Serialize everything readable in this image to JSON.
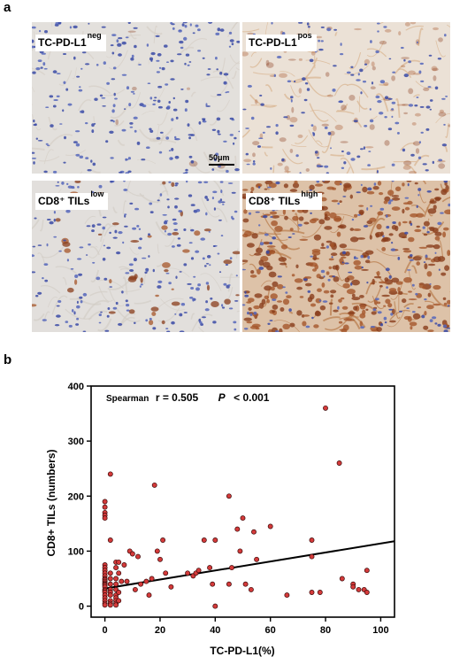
{
  "figure": {
    "panel_a_letter": "a",
    "panel_b_letter": "b",
    "micrographs": [
      {
        "id": "tc-neg",
        "label_main": "TC-PD-L1",
        "label_sup": "neg",
        "stain": "low",
        "palette": "blue",
        "scale_label": "50μm"
      },
      {
        "id": "tc-pos",
        "label_main": "TC-PD-L1",
        "label_sup": "pos",
        "stain": "mid",
        "palette": "brownish-light",
        "scale_label": ""
      },
      {
        "id": "cd8-low",
        "label_main": "CD8⁺ TILs",
        "label_sup": "low",
        "stain": "low-dots",
        "palette": "blue",
        "scale_label": ""
      },
      {
        "id": "cd8-high",
        "label_main": "CD8⁺ TILs",
        "label_sup": "high",
        "stain": "high",
        "palette": "brown-dense",
        "scale_label": ""
      }
    ]
  },
  "chart_data": {
    "type": "scatter",
    "xlabel": "TC-PD-L1(%)",
    "ylabel": "CD8+ TILs (numbers)",
    "xlim": [
      -5,
      105
    ],
    "ylim": [
      -20,
      400
    ],
    "x_ticks": [
      0,
      20,
      40,
      60,
      80,
      100
    ],
    "y_ticks": [
      0,
      100,
      200,
      300,
      400
    ],
    "annotation": {
      "prefix": "Spearman",
      "r_text": "r = 0.505",
      "p_label": "P",
      "p_text": "< 0.001"
    },
    "marker_color": "#d43a3a",
    "fit_line": {
      "x": [
        0,
        105
      ],
      "y": [
        32,
        118
      ]
    },
    "points": [
      [
        0,
        190
      ],
      [
        0,
        180
      ],
      [
        0,
        170
      ],
      [
        0,
        165
      ],
      [
        0,
        160
      ],
      [
        0,
        75
      ],
      [
        0,
        70
      ],
      [
        0,
        65
      ],
      [
        0,
        60
      ],
      [
        0,
        55
      ],
      [
        0,
        50
      ],
      [
        0,
        48
      ],
      [
        0,
        45
      ],
      [
        0,
        42
      ],
      [
        0,
        40
      ],
      [
        0,
        38
      ],
      [
        0,
        35
      ],
      [
        0,
        30
      ],
      [
        0,
        28
      ],
      [
        0,
        25
      ],
      [
        0,
        20
      ],
      [
        0,
        15
      ],
      [
        0,
        10
      ],
      [
        0,
        5
      ],
      [
        0,
        2
      ],
      [
        2,
        240
      ],
      [
        2,
        120
      ],
      [
        2,
        60
      ],
      [
        2,
        50
      ],
      [
        2,
        40
      ],
      [
        2,
        30
      ],
      [
        2,
        25
      ],
      [
        2,
        20
      ],
      [
        2,
        10
      ],
      [
        2,
        5
      ],
      [
        2,
        2
      ],
      [
        4,
        80
      ],
      [
        4,
        70
      ],
      [
        4,
        50
      ],
      [
        4,
        40
      ],
      [
        4,
        30
      ],
      [
        4,
        20
      ],
      [
        4,
        15
      ],
      [
        4,
        10
      ],
      [
        4,
        5
      ],
      [
        4,
        2
      ],
      [
        5,
        80
      ],
      [
        5,
        60
      ],
      [
        5,
        25
      ],
      [
        5,
        10
      ],
      [
        6,
        45
      ],
      [
        7,
        75
      ],
      [
        8,
        45
      ],
      [
        9,
        100
      ],
      [
        10,
        95
      ],
      [
        11,
        30
      ],
      [
        12,
        90
      ],
      [
        13,
        40
      ],
      [
        15,
        45
      ],
      [
        16,
        20
      ],
      [
        17,
        50
      ],
      [
        18,
        220
      ],
      [
        19,
        100
      ],
      [
        20,
        85
      ],
      [
        21,
        120
      ],
      [
        22,
        60
      ],
      [
        24,
        35
      ],
      [
        30,
        60
      ],
      [
        32,
        55
      ],
      [
        33,
        60
      ],
      [
        34,
        65
      ],
      [
        36,
        120
      ],
      [
        38,
        70
      ],
      [
        39,
        40
      ],
      [
        40,
        120
      ],
      [
        40,
        0
      ],
      [
        45,
        200
      ],
      [
        45,
        40
      ],
      [
        46,
        70
      ],
      [
        48,
        140
      ],
      [
        49,
        100
      ],
      [
        50,
        160
      ],
      [
        51,
        40
      ],
      [
        53,
        30
      ],
      [
        54,
        135
      ],
      [
        55,
        85
      ],
      [
        60,
        145
      ],
      [
        66,
        20
      ],
      [
        75,
        120
      ],
      [
        75,
        90
      ],
      [
        75,
        25
      ],
      [
        78,
        25
      ],
      [
        80,
        360
      ],
      [
        85,
        260
      ],
      [
        86,
        50
      ],
      [
        90,
        40
      ],
      [
        90,
        35
      ],
      [
        92,
        30
      ],
      [
        94,
        30
      ],
      [
        95,
        65
      ],
      [
        95,
        25
      ]
    ]
  }
}
